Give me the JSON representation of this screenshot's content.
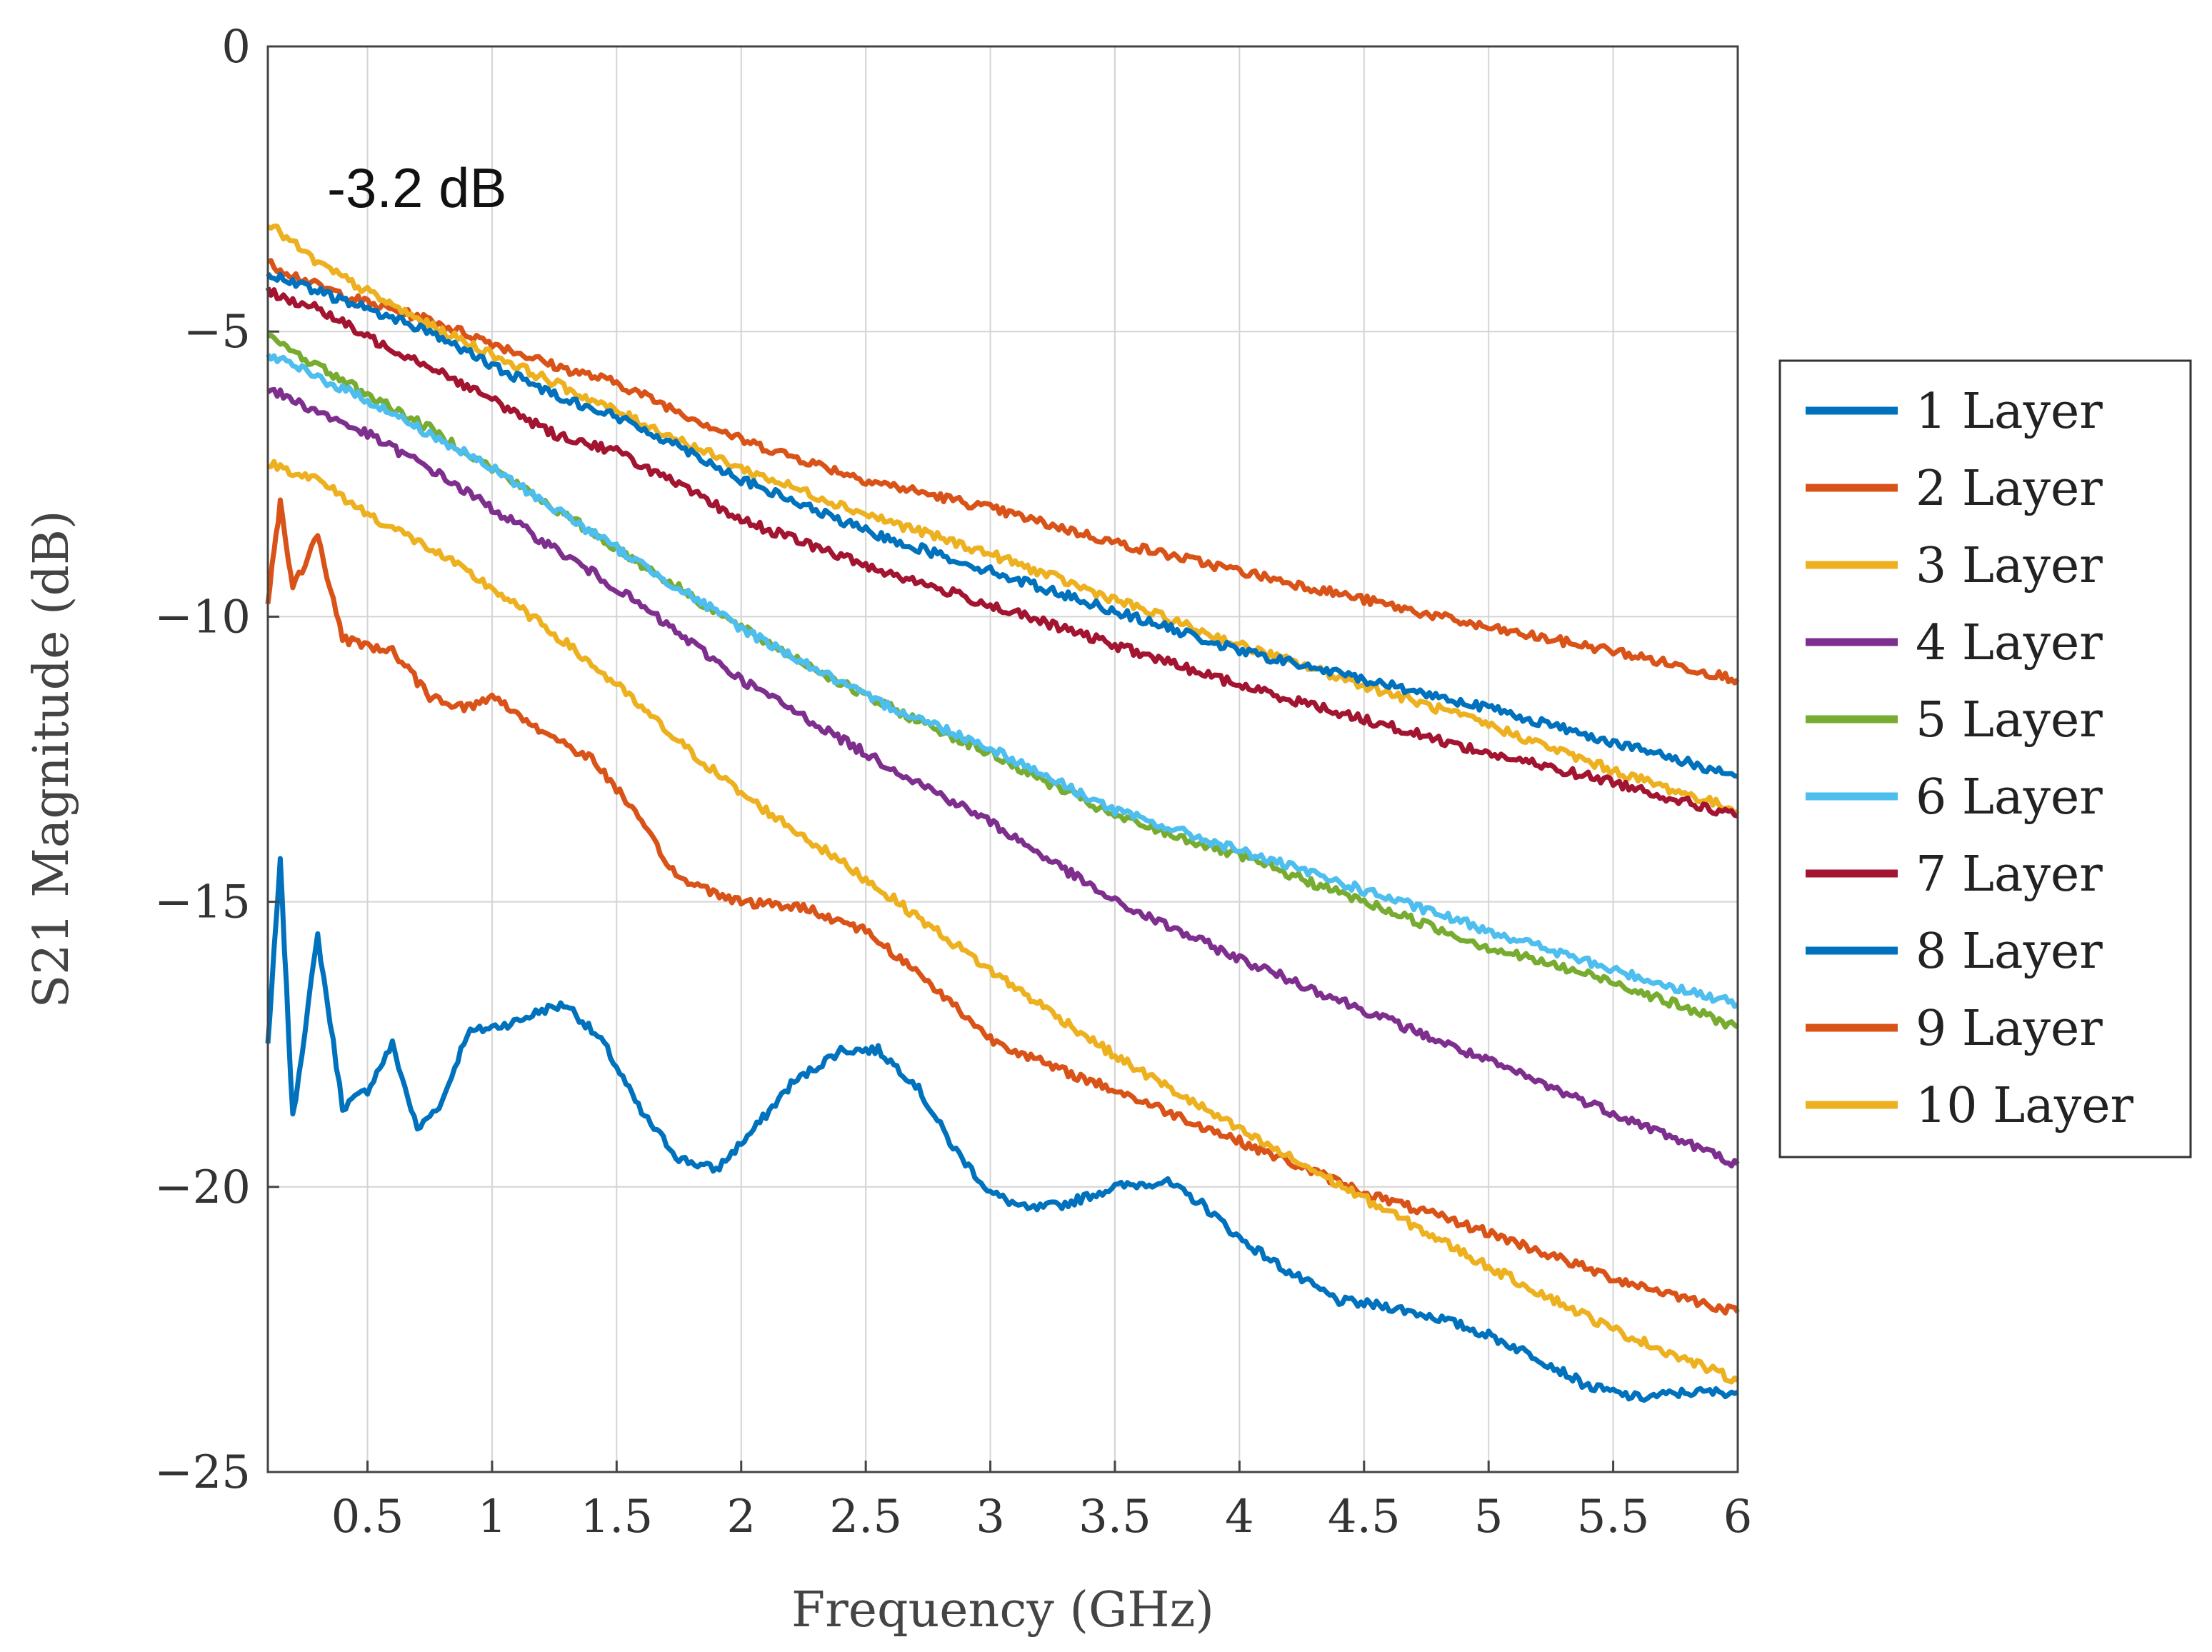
{
  "chart_data": {
    "type": "line",
    "xlabel": "Frequency (GHz)",
    "ylabel": "S21 Magnitude (dB)",
    "xlim": [
      0.1,
      6
    ],
    "ylim": [
      -25,
      0
    ],
    "grid": true,
    "legend_position": "outside-right",
    "annotation": "-3.2 dB",
    "x_ticks": [
      0.5,
      1,
      1.5,
      2,
      2.5,
      3,
      3.5,
      4,
      4.5,
      5,
      5.5,
      6
    ],
    "x_tick_labels": [
      "0.5",
      "1",
      "1.5",
      "2",
      "2.5",
      "3",
      "3.5",
      "4",
      "4.5",
      "5",
      "5.5",
      "6"
    ],
    "y_ticks": [
      0,
      -5,
      -10,
      -15,
      -20,
      -25
    ],
    "y_tick_labels": [
      "0",
      "−5",
      "−10",
      "−15",
      "−20",
      "−25"
    ],
    "series": [
      {
        "name": "1 Layer",
        "color": "#0072BD",
        "points": [
          [
            0.1,
            -17.5
          ],
          [
            0.15,
            -14.3
          ],
          [
            0.2,
            -18.8
          ],
          [
            0.3,
            -15.6
          ],
          [
            0.4,
            -18.6
          ],
          [
            0.5,
            -18.3
          ],
          [
            0.6,
            -17.5
          ],
          [
            0.7,
            -19.0
          ],
          [
            0.8,
            -18.5
          ],
          [
            0.9,
            -17.3
          ],
          [
            1.0,
            -17.2
          ],
          [
            1.1,
            -17.1
          ],
          [
            1.2,
            -16.9
          ],
          [
            1.3,
            -16.8
          ],
          [
            1.45,
            -17.5
          ],
          [
            1.6,
            -18.7
          ],
          [
            1.75,
            -19.5
          ],
          [
            1.9,
            -19.7
          ],
          [
            2.05,
            -19.0
          ],
          [
            2.2,
            -18.2
          ],
          [
            2.4,
            -17.6
          ],
          [
            2.55,
            -17.6
          ],
          [
            2.7,
            -18.2
          ],
          [
            2.85,
            -19.3
          ],
          [
            3.0,
            -20.1
          ],
          [
            3.15,
            -20.4
          ],
          [
            3.3,
            -20.3
          ],
          [
            3.5,
            -20.0
          ],
          [
            3.7,
            -19.9
          ],
          [
            3.85,
            -20.3
          ],
          [
            4.0,
            -20.9
          ],
          [
            4.2,
            -21.5
          ],
          [
            4.4,
            -22.0
          ],
          [
            4.6,
            -22.1
          ],
          [
            4.8,
            -22.3
          ],
          [
            5.0,
            -22.6
          ],
          [
            5.2,
            -23.0
          ],
          [
            5.4,
            -23.5
          ],
          [
            5.6,
            -23.7
          ],
          [
            5.8,
            -23.6
          ],
          [
            6.0,
            -23.6
          ]
        ]
      },
      {
        "name": "2 Layer",
        "color": "#D95319",
        "points": [
          [
            0.1,
            -3.8
          ],
          [
            0.3,
            -4.2
          ],
          [
            0.5,
            -4.5
          ],
          [
            0.75,
            -4.8
          ],
          [
            1.0,
            -5.2
          ],
          [
            1.25,
            -5.6
          ],
          [
            1.5,
            -5.9
          ],
          [
            1.75,
            -6.4
          ],
          [
            2.0,
            -6.9
          ],
          [
            2.5,
            -7.6
          ],
          [
            3.0,
            -8.1
          ],
          [
            3.5,
            -8.7
          ],
          [
            4.0,
            -9.2
          ],
          [
            4.5,
            -9.7
          ],
          [
            5.0,
            -10.2
          ],
          [
            5.5,
            -10.6
          ],
          [
            6.0,
            -11.1
          ]
        ]
      },
      {
        "name": "3 Layer",
        "color": "#EDB120",
        "points": [
          [
            0.1,
            -3.1
          ],
          [
            0.3,
            -3.8
          ],
          [
            0.5,
            -4.3
          ],
          [
            0.75,
            -4.9
          ],
          [
            1.0,
            -5.4
          ],
          [
            1.25,
            -5.9
          ],
          [
            1.5,
            -6.4
          ],
          [
            1.75,
            -6.9
          ],
          [
            2.0,
            -7.4
          ],
          [
            2.5,
            -8.2
          ],
          [
            3.0,
            -8.9
          ],
          [
            3.5,
            -9.7
          ],
          [
            4.0,
            -10.5
          ],
          [
            4.5,
            -11.2
          ],
          [
            5.0,
            -11.9
          ],
          [
            5.5,
            -12.7
          ],
          [
            6.0,
            -13.4
          ]
        ]
      },
      {
        "name": "4 Layer",
        "color": "#7E2F8E",
        "points": [
          [
            0.1,
            -6.0
          ],
          [
            0.3,
            -6.4
          ],
          [
            0.5,
            -6.8
          ],
          [
            0.75,
            -7.4
          ],
          [
            1.0,
            -8.1
          ],
          [
            1.25,
            -8.8
          ],
          [
            1.5,
            -9.5
          ],
          [
            1.75,
            -10.3
          ],
          [
            2.0,
            -11.1
          ],
          [
            2.5,
            -12.4
          ],
          [
            3.0,
            -13.6
          ],
          [
            3.5,
            -15.0
          ],
          [
            4.0,
            -16.0
          ],
          [
            4.5,
            -16.9
          ],
          [
            5.0,
            -17.8
          ],
          [
            5.5,
            -18.7
          ],
          [
            6.0,
            -19.6
          ]
        ]
      },
      {
        "name": "5 Layer",
        "color": "#77AC30",
        "points": [
          [
            0.1,
            -5.1
          ],
          [
            0.3,
            -5.6
          ],
          [
            0.5,
            -6.1
          ],
          [
            0.75,
            -6.7
          ],
          [
            1.0,
            -7.4
          ],
          [
            1.25,
            -8.1
          ],
          [
            1.5,
            -8.8
          ],
          [
            1.75,
            -9.5
          ],
          [
            2.0,
            -10.2
          ],
          [
            2.5,
            -11.4
          ],
          [
            3.0,
            -12.4
          ],
          [
            3.5,
            -13.5
          ],
          [
            4.0,
            -14.2
          ],
          [
            4.5,
            -15.0
          ],
          [
            5.0,
            -15.8
          ],
          [
            5.5,
            -16.4
          ],
          [
            6.0,
            -17.2
          ]
        ]
      },
      {
        "name": "6 Layer",
        "color": "#4DBEEE",
        "points": [
          [
            0.1,
            -5.4
          ],
          [
            0.3,
            -5.8
          ],
          [
            0.5,
            -6.2
          ],
          [
            0.75,
            -6.8
          ],
          [
            1.0,
            -7.4
          ],
          [
            1.25,
            -8.1
          ],
          [
            1.5,
            -8.8
          ],
          [
            1.75,
            -9.5
          ],
          [
            2.0,
            -10.2
          ],
          [
            2.5,
            -11.4
          ],
          [
            3.0,
            -12.3
          ],
          [
            3.5,
            -13.4
          ],
          [
            4.0,
            -14.1
          ],
          [
            4.5,
            -14.8
          ],
          [
            5.0,
            -15.5
          ],
          [
            5.5,
            -16.2
          ],
          [
            6.0,
            -16.8
          ]
        ]
      },
      {
        "name": "7 Layer",
        "color": "#A2142F",
        "points": [
          [
            0.1,
            -4.3
          ],
          [
            0.3,
            -4.6
          ],
          [
            0.5,
            -5.1
          ],
          [
            0.75,
            -5.6
          ],
          [
            1.0,
            -6.2
          ],
          [
            1.25,
            -6.8
          ],
          [
            1.5,
            -7.1
          ],
          [
            1.75,
            -7.7
          ],
          [
            2.0,
            -8.3
          ],
          [
            2.5,
            -9.1
          ],
          [
            3.0,
            -9.8
          ],
          [
            3.5,
            -10.5
          ],
          [
            4.0,
            -11.2
          ],
          [
            4.5,
            -11.8
          ],
          [
            5.0,
            -12.4
          ],
          [
            5.5,
            -12.9
          ],
          [
            6.0,
            -13.5
          ]
        ]
      },
      {
        "name": "8 Layer",
        "color": "#0072BD",
        "points": [
          [
            0.1,
            -4.0
          ],
          [
            0.3,
            -4.3
          ],
          [
            0.5,
            -4.6
          ],
          [
            0.75,
            -5.0
          ],
          [
            1.0,
            -5.6
          ],
          [
            1.25,
            -6.1
          ],
          [
            1.5,
            -6.5
          ],
          [
            1.75,
            -7.0
          ],
          [
            2.0,
            -7.6
          ],
          [
            2.5,
            -8.5
          ],
          [
            3.0,
            -9.2
          ],
          [
            3.5,
            -9.9
          ],
          [
            4.0,
            -10.6
          ],
          [
            4.5,
            -11.1
          ],
          [
            5.0,
            -11.6
          ],
          [
            5.5,
            -12.2
          ],
          [
            6.0,
            -12.8
          ]
        ]
      },
      {
        "name": "9 Layer",
        "color": "#D95319",
        "points": [
          [
            0.1,
            -9.7
          ],
          [
            0.15,
            -8.0
          ],
          [
            0.2,
            -9.5
          ],
          [
            0.3,
            -8.6
          ],
          [
            0.4,
            -10.4
          ],
          [
            0.5,
            -10.5
          ],
          [
            0.6,
            -10.6
          ],
          [
            0.75,
            -11.4
          ],
          [
            0.9,
            -11.6
          ],
          [
            1.0,
            -11.4
          ],
          [
            1.2,
            -12.0
          ],
          [
            1.4,
            -12.5
          ],
          [
            1.5,
            -13.0
          ],
          [
            1.75,
            -14.6
          ],
          [
            2.0,
            -15.0
          ],
          [
            2.25,
            -15.1
          ],
          [
            2.5,
            -15.5
          ],
          [
            2.75,
            -16.4
          ],
          [
            3.0,
            -17.4
          ],
          [
            3.25,
            -17.9
          ],
          [
            3.5,
            -18.3
          ],
          [
            4.0,
            -19.2
          ],
          [
            4.5,
            -20.1
          ],
          [
            5.0,
            -20.8
          ],
          [
            5.5,
            -21.6
          ],
          [
            6.0,
            -22.2
          ]
        ]
      },
      {
        "name": "10 Layer",
        "color": "#EDB120",
        "points": [
          [
            0.1,
            -7.3
          ],
          [
            0.3,
            -7.6
          ],
          [
            0.5,
            -8.2
          ],
          [
            0.75,
            -8.8
          ],
          [
            1.0,
            -9.5
          ],
          [
            1.25,
            -10.3
          ],
          [
            1.5,
            -11.2
          ],
          [
            1.75,
            -12.2
          ],
          [
            2.0,
            -13.1
          ],
          [
            2.5,
            -14.6
          ],
          [
            3.0,
            -16.2
          ],
          [
            3.5,
            -17.7
          ],
          [
            4.0,
            -19.0
          ],
          [
            4.5,
            -20.2
          ],
          [
            5.0,
            -21.4
          ],
          [
            5.5,
            -22.5
          ],
          [
            6.0,
            -23.4
          ]
        ]
      }
    ]
  }
}
